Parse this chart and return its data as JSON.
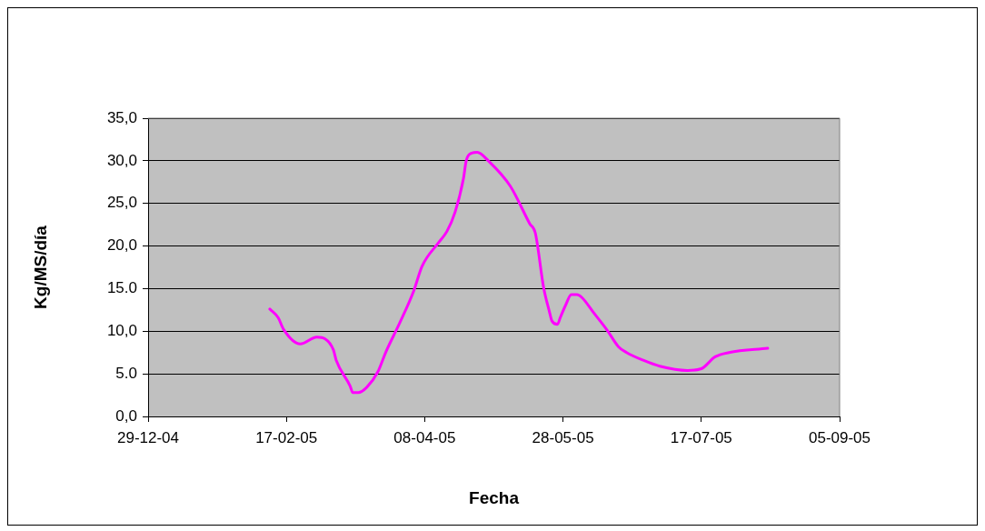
{
  "chart_data": {
    "type": "line",
    "xlabel": "Fecha",
    "ylabel": "Kg/MS/día",
    "x": [
      "2005-02-11",
      "2005-02-14",
      "2005-02-16",
      "2005-02-22",
      "2005-02-28",
      "2005-03-03",
      "2005-03-06",
      "2005-03-07",
      "2005-03-12",
      "2005-03-13",
      "2005-03-15",
      "2005-03-18",
      "2005-03-22",
      "2005-03-25",
      "2005-03-30",
      "2005-04-04",
      "2005-04-07",
      "2005-04-13",
      "2005-04-16",
      "2005-04-19",
      "2005-04-22",
      "2005-04-23",
      "2005-04-25",
      "2005-04-27",
      "2005-05-01",
      "2005-05-09",
      "2005-05-16",
      "2005-05-18",
      "2005-05-21",
      "2005-05-23",
      "2005-05-24",
      "2005-05-26",
      "2005-05-27",
      "2005-05-29",
      "2005-05-31",
      "2005-06-02",
      "2005-06-04",
      "2005-06-08",
      "2005-06-13",
      "2005-06-17",
      "2005-06-20",
      "2005-06-26",
      "2005-07-02",
      "2005-07-12",
      "2005-07-17",
      "2005-07-22",
      "2005-07-27",
      "2005-08-10"
    ],
    "series": [
      {
        "color": "#ff00ff",
        "values": [
          12.6,
          11.6,
          10.2,
          8.5,
          9.3,
          9.1,
          7.8,
          6.6,
          3.6,
          2.8,
          2.8,
          3.4,
          5.2,
          7.6,
          11.0,
          14.7,
          17.6,
          20.4,
          21.7,
          24.0,
          27.9,
          30.0,
          30.9,
          31.0,
          30.0,
          27.0,
          22.6,
          21.5,
          15.1,
          12.4,
          11.2,
          10.8,
          11.6,
          13.1,
          14.3,
          14.3,
          13.9,
          12.2,
          10.1,
          8.2,
          7.5,
          6.6,
          5.9,
          5.4,
          5.6,
          7.0,
          7.5,
          8.0
        ]
      }
    ],
    "xlim": [
      "2004-12-29",
      "2005-09-05"
    ],
    "xticks": [
      {
        "value": "2004-12-29",
        "label": "29-12-04"
      },
      {
        "value": "2005-02-17",
        "label": "17-02-05"
      },
      {
        "value": "2005-04-08",
        "label": "08-04-05"
      },
      {
        "value": "2005-05-28",
        "label": "28-05-05"
      },
      {
        "value": "2005-07-17",
        "label": "17-07-05"
      },
      {
        "value": "2005-09-05",
        "label": "05-09-05"
      }
    ],
    "ylim": [
      0,
      35
    ],
    "yticks": [
      {
        "value": 0,
        "label": "0,0"
      },
      {
        "value": 5,
        "label": "5.0"
      },
      {
        "value": 10,
        "label": "10,0"
      },
      {
        "value": 15,
        "label": "15.0"
      },
      {
        "value": 20,
        "label": "20,0"
      },
      {
        "value": 25,
        "label": "25,0"
      },
      {
        "value": 30,
        "label": "30,0"
      },
      {
        "value": 35,
        "label": "35,0"
      }
    ],
    "grid": "y",
    "legend": false,
    "marker": "none",
    "line_style": "solid"
  }
}
